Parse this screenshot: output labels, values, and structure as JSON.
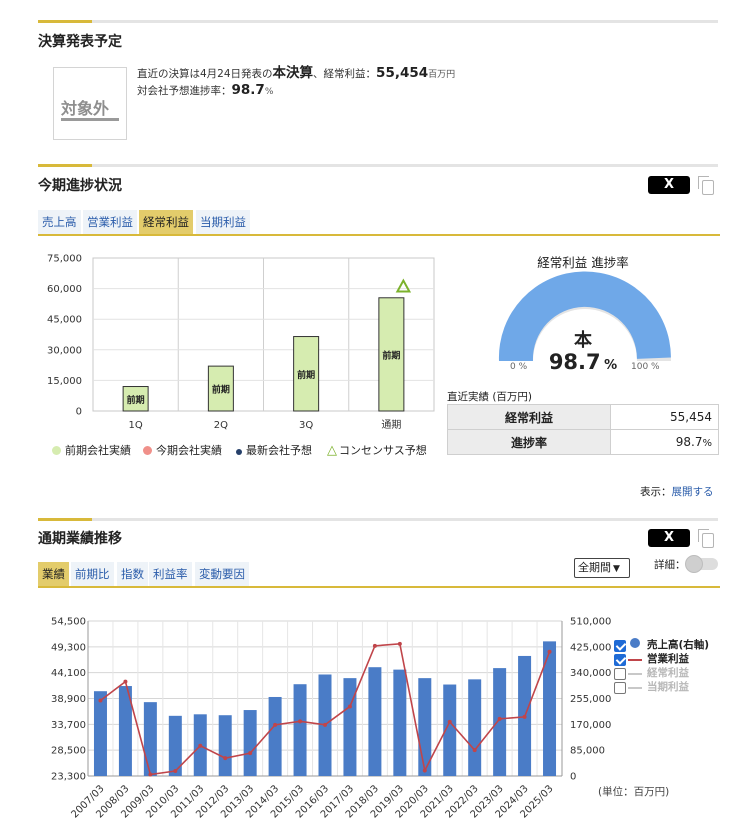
{
  "earnings_schedule": {
    "title": "決算発表予定",
    "stamp": "対象外",
    "line1_pre": "直近の決算は4月24日発表の",
    "line1_bold": "本決算",
    "line1_mid": "、経常利益：",
    "line1_value": "55,454",
    "line1_unit": "百万円",
    "line2_pre": "対会社予想進捗率：",
    "line2_value": "98.7",
    "line2_unit": "%"
  },
  "progress": {
    "title": "今期進捗状況",
    "x_button": "X",
    "tabs": [
      "売上高",
      "営業利益",
      "経常利益",
      "当期利益"
    ],
    "active_tab": 2,
    "legend": [
      {
        "label": "前期会社実績",
        "color": "#d6ecb0"
      },
      {
        "label": "今期会社実績",
        "color": "#f0908a"
      },
      {
        "label": "最新会社予想",
        "color": "#26406a"
      },
      {
        "label": "コンセンサス予想",
        "color": "#7cb22c"
      }
    ],
    "gauge": {
      "title": "経常利益 進捗率",
      "center_label": "本",
      "value": "98.7",
      "unit": "%",
      "min_label": "0 %",
      "max_label": "100 %",
      "fill_fraction": 0.987,
      "color": "#6fa8e8"
    },
    "table_caption": "直近実績 (百万円)",
    "table": [
      {
        "key": "経常利益",
        "value": "55,454",
        "unit": ""
      },
      {
        "key": "進捗率",
        "value": "98.7",
        "unit": "%"
      }
    ],
    "display_label": "表示：",
    "expand_link": "展開する"
  },
  "trend": {
    "title": "通期業績推移",
    "x_button": "X",
    "tabs": [
      "業績",
      "前期比",
      "指数",
      "利益率",
      "変動要因"
    ],
    "active_tab": 0,
    "period_select": "全期間",
    "detail_label": "詳細：",
    "series_legend": [
      {
        "label": "売上高(右軸)",
        "checked": true,
        "color": "#4a7cc7",
        "muted": false
      },
      {
        "label": "営業利益",
        "checked": true,
        "color": "#c0454a",
        "muted": false
      },
      {
        "label": "経常利益",
        "checked": false,
        "color": "#b8b8b8",
        "muted": true
      },
      {
        "label": "当期利益",
        "checked": false,
        "color": "#b8b8b8",
        "muted": true
      }
    ],
    "unit_note": "(単位：百万円)"
  },
  "chart_data": [
    {
      "type": "bar",
      "categories": [
        "1Q",
        "2Q",
        "3Q",
        "通期"
      ],
      "series": [
        {
          "name": "前期会社実績",
          "values": [
            12000,
            22000,
            36500,
            55500
          ]
        },
        {
          "name": "コンセンサス予想",
          "values": [
            null,
            null,
            null,
            61000
          ]
        }
      ],
      "bar_labels": [
        "前期",
        "前期",
        "前期",
        "前期"
      ],
      "y_ticks": [
        "0",
        "15,000",
        "30,000",
        "45,000",
        "60,000",
        "75,000"
      ],
      "ylim": [
        0,
        75000
      ],
      "grid": true
    },
    {
      "type": "bar",
      "categories": [
        "2007/03",
        "2008/03",
        "2009/03",
        "2010/03",
        "2011/03",
        "2012/03",
        "2013/03",
        "2014/03",
        "2015/03",
        "2016/03",
        "2017/03",
        "2018/03",
        "2019/03",
        "2020/03",
        "2021/03",
        "2022/03",
        "2023/03",
        "2024/03",
        "2025/03"
      ],
      "series": [
        {
          "name": "売上高(右軸)",
          "values": [
            279000,
            296000,
            243000,
            198000,
            203000,
            200000,
            217000,
            260000,
            302000,
            334000,
            322000,
            358000,
            350000,
            322000,
            301000,
            318000,
            355000,
            395000,
            443000
          ]
        },
        {
          "name": "営業利益",
          "values": [
            38500,
            42300,
            23600,
            24300,
            29400,
            26900,
            27900,
            33600,
            34300,
            33600,
            37300,
            49500,
            49900,
            24400,
            34200,
            28500,
            34800,
            35200,
            48300
          ]
        }
      ],
      "left_ticks": [
        "23,300",
        "28,500",
        "33,700",
        "38,900",
        "44,100",
        "49,300",
        "54,500"
      ],
      "right_ticks": [
        "0",
        "85,000",
        "170,000",
        "255,000",
        "340,000",
        "425,000",
        "510,000"
      ],
      "ylim_left": [
        23300,
        54500
      ],
      "ylim_right": [
        0,
        510000
      ],
      "grid": true
    }
  ],
  "colors": {
    "accent": "#d8b93a",
    "bar_green": "#d6ecb0",
    "bar_blue": "#4a7cc7",
    "line_red": "#c0454a",
    "link": "#2a5caa"
  }
}
